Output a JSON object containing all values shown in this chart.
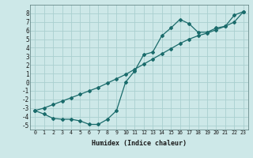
{
  "xlabel": "Humidex (Indice chaleur)",
  "bg_color": "#cde8e8",
  "line_color": "#1a6b6b",
  "grid_color": "#aacfcf",
  "xlim": [
    -0.5,
    23.5
  ],
  "ylim": [
    -5.5,
    9.0
  ],
  "xticks": [
    0,
    1,
    2,
    3,
    4,
    5,
    6,
    7,
    8,
    9,
    10,
    11,
    12,
    13,
    14,
    15,
    16,
    17,
    18,
    19,
    20,
    21,
    22,
    23
  ],
  "yticks": [
    -5,
    -4,
    -3,
    -2,
    -1,
    0,
    1,
    2,
    3,
    4,
    5,
    6,
    7,
    8
  ],
  "curve1_x": [
    0,
    1,
    2,
    3,
    4,
    5,
    6,
    7,
    8,
    9,
    10,
    11,
    12,
    13,
    14,
    15,
    16,
    17,
    18,
    19,
    20,
    21,
    22,
    23
  ],
  "curve1_y": [
    -3.3,
    -3.7,
    -4.2,
    -4.3,
    -4.3,
    -4.5,
    -4.9,
    -4.9,
    -4.3,
    -3.3,
    0.0,
    1.3,
    3.2,
    3.5,
    5.4,
    6.3,
    7.3,
    6.8,
    5.8,
    5.8,
    6.3,
    6.5,
    7.8,
    8.2
  ],
  "curve2_x": [
    0,
    1,
    2,
    3,
    4,
    5,
    6,
    7,
    8,
    9,
    10,
    11,
    12,
    13,
    14,
    15,
    16,
    17,
    18,
    19,
    20,
    21,
    22,
    23
  ],
  "curve2_y": [
    -3.3,
    -3.0,
    -2.6,
    -2.2,
    -1.8,
    -1.4,
    -1.0,
    -0.6,
    -0.1,
    0.4,
    0.9,
    1.5,
    2.1,
    2.7,
    3.3,
    3.9,
    4.5,
    5.0,
    5.4,
    5.7,
    6.1,
    6.5,
    7.0,
    8.2
  ]
}
